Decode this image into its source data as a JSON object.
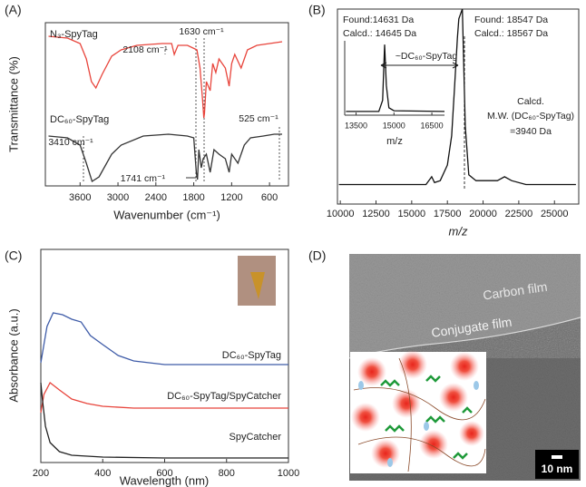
{
  "chart_data": [
    {
      "type": "line",
      "label": "(A)",
      "xlabel": "Wavenumber (cm⁻¹)",
      "ylabel": "Transmittance (%)",
      "xlim": [
        4150,
        300
      ],
      "ylim": [
        0,
        180
      ],
      "xticks": [
        3600,
        3000,
        2400,
        1800,
        1200,
        600
      ],
      "series": [
        {
          "name": "N₃-SpyTag",
          "color": "#e8453c",
          "x": [
            4100,
            3800,
            3600,
            3500,
            3420,
            3350,
            3250,
            3100,
            2950,
            2700,
            2300,
            2150,
            2108,
            2050,
            1900,
            1750,
            1700,
            1660,
            1640,
            1630,
            1600,
            1540,
            1500,
            1450,
            1400,
            1300,
            1240,
            1200,
            1150,
            1050,
            950,
            800,
            600,
            400
          ],
          "values": [
            165,
            163,
            157,
            140,
            115,
            108,
            123,
            143,
            150,
            155,
            157,
            157,
            145,
            155,
            155,
            150,
            130,
            95,
            75,
            80,
            115,
            105,
            135,
            125,
            140,
            130,
            110,
            135,
            145,
            130,
            150,
            155,
            157,
            159
          ]
        },
        {
          "name": "DC₆₀-SpyTag",
          "color": "#333333",
          "x": [
            4100,
            3800,
            3600,
            3500,
            3410,
            3300,
            3100,
            2950,
            2600,
            2200,
            1900,
            1800,
            1760,
            1741,
            1720,
            1680,
            1650,
            1600,
            1540,
            1480,
            1400,
            1300,
            1240,
            1200,
            1100,
            1000,
            900,
            700,
            525,
            400
          ],
          "values": [
            55,
            53,
            45,
            25,
            5,
            10,
            35,
            45,
            55,
            57,
            55,
            53,
            15,
            7,
            40,
            20,
            30,
            35,
            15,
            40,
            35,
            30,
            15,
            35,
            25,
            45,
            53,
            55,
            57,
            57
          ]
        }
      ],
      "annotations": [
        "2108 cm⁻¹",
        "1630 cm⁻¹",
        "3410 cm⁻¹",
        "1741 cm⁻¹",
        "525 cm⁻¹"
      ]
    },
    {
      "type": "line",
      "label": "(B)",
      "xlabel": "m/z",
      "xlim": [
        9800,
        26700
      ],
      "ylim": [
        0,
        100
      ],
      "xticks": [
        10000,
        12500,
        15000,
        17500,
        20000,
        22500,
        25000
      ],
      "series": [
        {
          "color": "#111111",
          "x": [
            9900,
            12000,
            14000,
            16000,
            16400,
            16600,
            17000,
            17500,
            17800,
            18000,
            18200,
            18300,
            18450,
            18547,
            18650,
            18750,
            19000,
            19500,
            20000,
            21000,
            21500,
            22000,
            23000,
            26500
          ],
          "values": [
            10,
            10,
            10,
            10,
            14,
            11,
            12,
            20,
            35,
            60,
            85,
            95,
            98,
            100,
            70,
            40,
            15,
            12,
            12,
            12,
            14,
            12,
            10,
            10
          ]
        }
      ],
      "annotations": [
        "Found:14631 Da",
        "Calcd.: 14645 Da",
        "Found: 18547 Da",
        "Calcd.: 18567 Da",
        "~DC₆₀-SpyTag",
        "Calcd.",
        "M.W. (DC₆₀-SpyTag)",
        "=3940 Da"
      ],
      "inset": {
        "xlabel": "m/z",
        "xlim": [
          13050,
          17000
        ],
        "ylim": [
          0,
          100
        ],
        "xticks": [
          13500,
          15000,
          16500
        ],
        "series": [
          {
            "color": "#111111",
            "x": [
              13100,
              14400,
              14550,
              14631,
              14700,
              14800,
              15000,
              17000
            ],
            "values": [
              5,
              5,
              20,
              95,
              40,
              10,
              6,
              5
            ]
          }
        ]
      }
    },
    {
      "type": "line",
      "label": "(C)",
      "xlabel": "Wavelength (nm)",
      "ylabel": "Absorbance (a.u.)",
      "xlim": [
        200,
        1000
      ],
      "ylim": [
        0,
        235
      ],
      "xticks": [
        200,
        400,
        600,
        800,
        1000
      ],
      "series": [
        {
          "name": "DC₆₀-SpyTag",
          "color": "#3f5ca8",
          "x": [
            200,
            220,
            240,
            270,
            300,
            330,
            360,
            400,
            450,
            500,
            600,
            800,
            1000
          ],
          "values": [
            110,
            150,
            165,
            163,
            158,
            155,
            140,
            130,
            118,
            112,
            108,
            108,
            108
          ]
        },
        {
          "name": "DC₆₀-SpyTag/SpyCatcher",
          "color": "#e8453c",
          "x": [
            200,
            210,
            230,
            260,
            300,
            350,
            400,
            500,
            600,
            1000
          ],
          "values": [
            55,
            75,
            88,
            80,
            70,
            65,
            62,
            60,
            60,
            60
          ]
        },
        {
          "name": "SpyCatcher",
          "color": "#222222",
          "x": [
            200,
            205,
            215,
            230,
            260,
            300,
            400,
            600,
            1000
          ],
          "values": [
            88,
            70,
            40,
            22,
            12,
            8,
            6,
            5,
            5
          ]
        }
      ]
    }
  ],
  "image_panel": {
    "label": "(D)",
    "texts": [
      "Carbon film",
      "Conjugate film"
    ],
    "scale_bar": "10 nm"
  }
}
